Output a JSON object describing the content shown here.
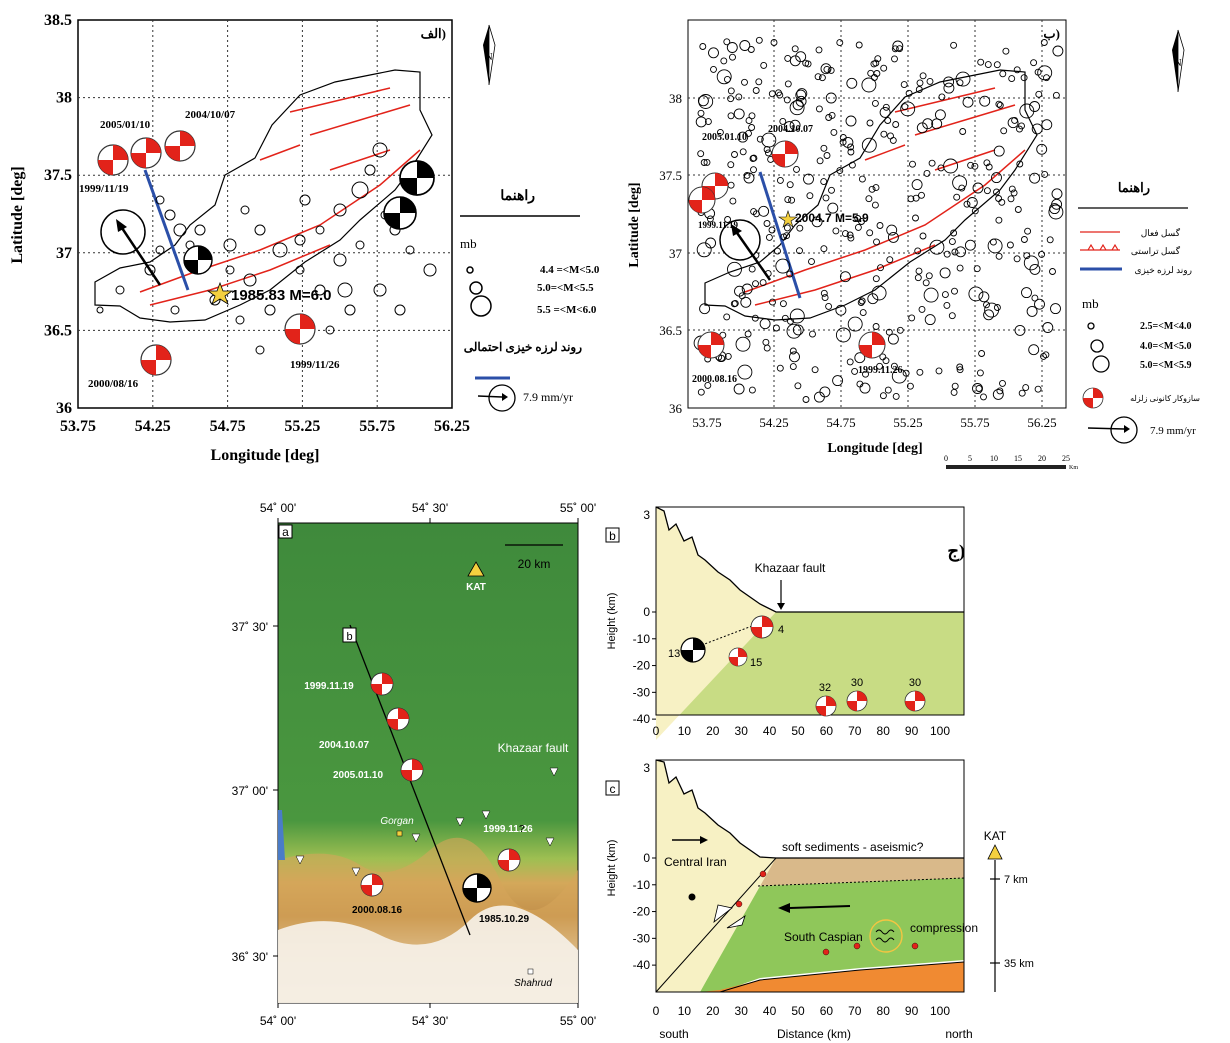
{
  "panel_alef": {
    "label": "الف)",
    "y_ticks": [
      "38.5",
      "38",
      "37.5",
      "37",
      "36.5",
      "36"
    ],
    "x_ticks": [
      "53.75",
      "54.25",
      "54.75",
      "55.25",
      "55.75",
      "56.25"
    ],
    "xlabel": "Longitude [deg]",
    "ylabel": "Latitude [deg]",
    "north": "N",
    "events": [
      {
        "date": "2005/01/10"
      },
      {
        "date": "2004/10/07"
      },
      {
        "date": "1999/11/19"
      },
      {
        "date": "2000/08/16"
      },
      {
        "date": "1999/11/26"
      }
    ],
    "main_event": "1985.83 M=6.0",
    "legend": {
      "title": "راهنما",
      "mb": "mb",
      "mag1": "4.4 =<M<5.0",
      "mag2": "5.0=<M<5.5",
      "mag3": "5.5 =<M<6.0",
      "trend": "روند لرزه خیزی احتمالی",
      "velocity": "7.9 mm/yr"
    }
  },
  "panel_be": {
    "label": "ب)",
    "y_ticks": [
      "38",
      "37.5",
      "37",
      "36.5",
      "36"
    ],
    "x_ticks": [
      "53.75",
      "54.25",
      "54.75",
      "55.25",
      "55.75",
      "56.25"
    ],
    "xlabel": "Longitude [deg]",
    "ylabel": "Latitude [deg]",
    "north": "N",
    "events": [
      {
        "date": "2005.01.10"
      },
      {
        "date": "2004.10.07"
      },
      {
        "date": "1999.11.19"
      },
      {
        "date": "2000.08.16"
      },
      {
        "date": "1999.11.26"
      }
    ],
    "main_event": "2004.7 M=5.9",
    "legend": {
      "title": "راهنما",
      "fault1": "گسل فعال",
      "fault2": "گسل تراستی",
      "trend": "روند لرزه خیزی",
      "mb": "mb",
      "mag1": "2.5=<M<4.0",
      "mag2": "4.0=<M<5.0",
      "mag3": "5.0=<M<5.9",
      "mech": "سازوکار کانونی زلزله",
      "velocity": "7.9 mm/yr"
    },
    "scale_ticks": [
      "0",
      "5",
      "10",
      "15",
      "20",
      "25"
    ],
    "scale_unit": "Km"
  },
  "panel_a": {
    "label": "a",
    "top_ticks": [
      "54˚ 00'",
      "54˚ 30'",
      "55˚ 00'"
    ],
    "bottom_ticks": [
      "54˚ 00'",
      "54˚ 30'",
      "55˚ 00'"
    ],
    "left_ticks": [
      "37˚ 30'",
      "37˚ 00'",
      "36˚ 30'"
    ],
    "scale": "20 km",
    "station": "KAT",
    "b_marker": "b",
    "khazaar": "Khazaar fault",
    "gorgan": "Gorgan",
    "shahrud": "Shahrud",
    "question": "?",
    "events": [
      "1999.11.19",
      "2004.10.07",
      "2005.01.10",
      "1999.11.26",
      "2000.08.16",
      "1985.10.29"
    ]
  },
  "panel_jim_label": "ج)",
  "panel_b": {
    "label": "b",
    "y_ticks": [
      "0",
      "-10",
      "-20",
      "-30",
      "-40"
    ],
    "extra_y_ticks": [
      "3"
    ],
    "x_ticks": [
      "0",
      "10",
      "20",
      "30",
      "40",
      "50",
      "60",
      "70",
      "80",
      "90",
      "100"
    ],
    "ylabel": "Height (km)",
    "fault": "Khazaar fault",
    "depths": [
      "4",
      "13",
      "15",
      "32",
      "30",
      "30"
    ]
  },
  "panel_c": {
    "label": "c",
    "y_ticks": [
      "0",
      "-10",
      "-20",
      "-30",
      "-40"
    ],
    "extra_y_ticks": [
      "3"
    ],
    "x_ticks": [
      "0",
      "10",
      "20",
      "30",
      "40",
      "50",
      "60",
      "70",
      "80",
      "90",
      "100"
    ],
    "ylabel": "Height (km)",
    "xlabel": "Distance (km)",
    "south": "south",
    "north": "north",
    "central_iran": "Central Iran",
    "soft": "soft sediments - aseismic?",
    "south_caspian": "South Caspian",
    "compression": "compression",
    "station": "KAT",
    "depth1": "7 km",
    "depth2": "35 km"
  },
  "colors": {
    "focal_red": "#e2231a",
    "fault_red": "#e2231a",
    "trend_blue": "#2b4fa8",
    "green_low": "#5aa24a",
    "map_green": "#3f8a3c",
    "sediment": "#d9b98a",
    "crust": "#f7f1c4",
    "mantle": "#f08a32"
  }
}
